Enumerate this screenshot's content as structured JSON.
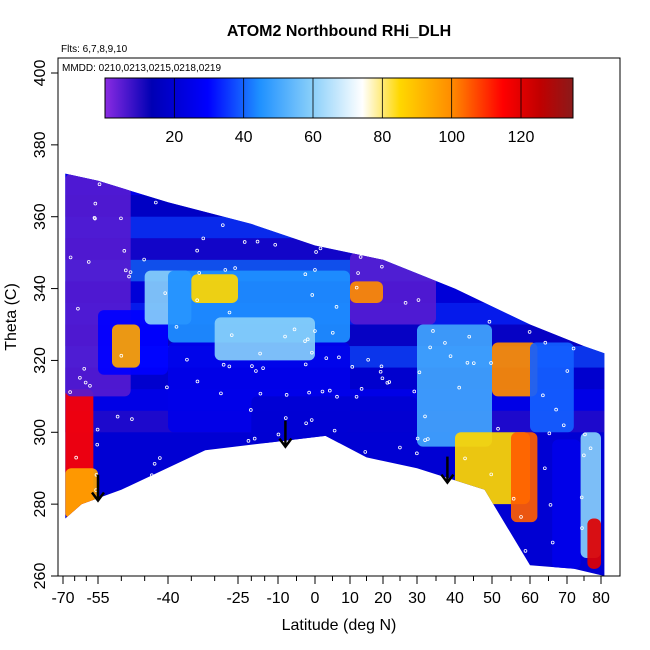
{
  "chart_data": {
    "type": "heatmap",
    "title": "ATOM2 Northbound RHi_DLH",
    "flights_label": "Flts: 6,7,8,9,10",
    "dates_label": "MMDD: 0210,0213,0215,0218,0219",
    "xlabel": "Latitude (deg N)",
    "ylabel": "Theta (C)",
    "xlim": [
      -70,
      82
    ],
    "ylim": [
      260,
      404
    ],
    "x_ticks": [
      -70,
      -55,
      -40,
      -25,
      -10,
      0,
      10,
      20,
      30,
      40,
      50,
      60,
      70,
      80
    ],
    "x_tick_labels": [
      "-70",
      "-55",
      "-40",
      "-25",
      "-10",
      "0",
      "10",
      "20",
      "30",
      "40",
      "50",
      "60",
      "70",
      "80"
    ],
    "y_ticks": [
      260,
      280,
      300,
      320,
      340,
      360,
      380,
      400
    ],
    "y_tick_labels": [
      "260",
      "280",
      "300",
      "320",
      "340",
      "360",
      "380",
      "400"
    ],
    "colorbar": {
      "range": [
        0,
        135
      ],
      "ticks": [
        20,
        40,
        60,
        80,
        100,
        120
      ],
      "tick_labels": [
        "20",
        "40",
        "60",
        "80",
        "100",
        "120"
      ],
      "colors": [
        "#8a2be2",
        "#0000b4",
        "#0000ff",
        "#1e90ff",
        "#87cefa",
        "#ffffff",
        "#ffd700",
        "#ff8c00",
        "#ff0000",
        "#b22222",
        "#8b1a1a"
      ]
    },
    "arrows": [
      {
        "lat": -55,
        "theta": 281
      },
      {
        "lat": -8,
        "theta": 296
      },
      {
        "lat": 38,
        "theta": 286
      }
    ],
    "upper_boundary": [
      {
        "lat": -69,
        "theta": 372
      },
      {
        "lat": -55,
        "theta": 370
      },
      {
        "lat": -40,
        "theta": 364
      },
      {
        "lat": -20,
        "theta": 358
      },
      {
        "lat": 0,
        "theta": 352
      },
      {
        "lat": 20,
        "theta": 348
      },
      {
        "lat": 40,
        "theta": 340
      },
      {
        "lat": 60,
        "theta": 330
      },
      {
        "lat": 75,
        "theta": 324
      },
      {
        "lat": 81,
        "theta": 322
      }
    ],
    "lower_boundary": [
      {
        "lat": -69,
        "theta": 276
      },
      {
        "lat": -62,
        "theta": 280
      },
      {
        "lat": -50,
        "theta": 284
      },
      {
        "lat": -32,
        "theta": 295
      },
      {
        "lat": -15,
        "theta": 297
      },
      {
        "lat": 3,
        "theta": 299
      },
      {
        "lat": 15,
        "theta": 293
      },
      {
        "lat": 30,
        "theta": 290
      },
      {
        "lat": 48,
        "theta": 284
      },
      {
        "lat": 60,
        "theta": 263
      },
      {
        "lat": 72,
        "theta": 262
      },
      {
        "lat": 81,
        "theta": 260
      }
    ],
    "regions": [
      {
        "lat": [
          -69,
          -57
        ],
        "theta": [
          276,
          312
        ],
        "value": 115
      },
      {
        "lat": [
          -69,
          -55
        ],
        "theta": [
          276,
          290
        ],
        "value": 95
      },
      {
        "lat": [
          -69,
          -48
        ],
        "theta": [
          310,
          372
        ],
        "value": 5
      },
      {
        "lat": [
          -55,
          -40
        ],
        "theta": [
          316,
          334
        ],
        "value": 30
      },
      {
        "lat": [
          -52,
          -46
        ],
        "theta": [
          318,
          330
        ],
        "value": 95
      },
      {
        "lat": [
          -45,
          -35
        ],
        "theta": [
          330,
          345
        ],
        "value": 60
      },
      {
        "lat": [
          -40,
          10
        ],
        "theta": [
          300,
          325
        ],
        "value": 25
      },
      {
        "lat": [
          -40,
          10
        ],
        "theta": [
          325,
          345
        ],
        "value": 45
      },
      {
        "lat": [
          -35,
          -25
        ],
        "theta": [
          336,
          344
        ],
        "value": 85
      },
      {
        "lat": [
          -30,
          0
        ],
        "theta": [
          320,
          332
        ],
        "value": 60
      },
      {
        "lat": [
          10,
          35
        ],
        "theta": [
          330,
          350
        ],
        "value": 5
      },
      {
        "lat": [
          10,
          20
        ],
        "theta": [
          336,
          342
        ],
        "value": 100
      },
      {
        "lat": [
          -20,
          30
        ],
        "theta": [
          297,
          310
        ],
        "value": 20
      },
      {
        "lat": [
          30,
          50
        ],
        "theta": [
          296,
          330
        ],
        "value": 50
      },
      {
        "lat": [
          40,
          60
        ],
        "theta": [
          280,
          300
        ],
        "value": 85
      },
      {
        "lat": [
          50,
          62
        ],
        "theta": [
          310,
          325
        ],
        "value": 100
      },
      {
        "lat": [
          55,
          62
        ],
        "theta": [
          275,
          300
        ],
        "value": 105
      },
      {
        "lat": [
          60,
          72
        ],
        "theta": [
          300,
          325
        ],
        "value": 40
      },
      {
        "lat": [
          66,
          74
        ],
        "theta": [
          262,
          298
        ],
        "value": 25
      },
      {
        "lat": [
          74,
          80
        ],
        "theta": [
          265,
          300
        ],
        "value": 60
      },
      {
        "lat": [
          76,
          80
        ],
        "theta": [
          262,
          276
        ],
        "value": 120
      }
    ]
  }
}
